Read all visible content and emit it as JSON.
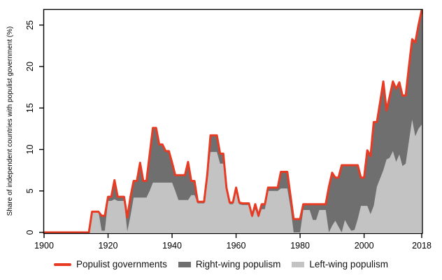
{
  "chart_data": {
    "type": "area",
    "title": "",
    "xlabel": "",
    "ylabel": "Share of independent countries with populist government (%)",
    "x_range": [
      1900,
      2018
    ],
    "ylim": [
      0,
      27
    ],
    "yticks": [
      0,
      5,
      10,
      15,
      20,
      25
    ],
    "xticks": [
      1900,
      1920,
      1940,
      1960,
      1980,
      2000,
      2018
    ],
    "grid": false,
    "legend_position": "bottom",
    "years": [
      1900,
      1901,
      1902,
      1903,
      1904,
      1905,
      1906,
      1907,
      1908,
      1909,
      1910,
      1911,
      1912,
      1913,
      1914,
      1915,
      1916,
      1917,
      1918,
      1919,
      1920,
      1921,
      1922,
      1923,
      1924,
      1925,
      1926,
      1927,
      1928,
      1929,
      1930,
      1931,
      1932,
      1933,
      1934,
      1935,
      1936,
      1937,
      1938,
      1939,
      1940,
      1941,
      1942,
      1943,
      1944,
      1945,
      1946,
      1947,
      1948,
      1949,
      1950,
      1951,
      1952,
      1953,
      1954,
      1955,
      1956,
      1957,
      1958,
      1959,
      1960,
      1961,
      1962,
      1963,
      1964,
      1965,
      1966,
      1967,
      1968,
      1969,
      1970,
      1971,
      1972,
      1973,
      1974,
      1975,
      1976,
      1977,
      1978,
      1979,
      1980,
      1981,
      1982,
      1983,
      1984,
      1985,
      1986,
      1987,
      1988,
      1989,
      1990,
      1991,
      1992,
      1993,
      1994,
      1995,
      1996,
      1997,
      1998,
      1999,
      2000,
      2001,
      2002,
      2003,
      2004,
      2005,
      2006,
      2007,
      2008,
      2009,
      2010,
      2011,
      2012,
      2013,
      2014,
      2015,
      2016,
      2017,
      2018
    ],
    "series": [
      {
        "name": "Populist governments",
        "style": "line",
        "color": "#e73b24",
        "values": [
          0,
          0,
          0,
          0,
          0,
          0,
          0,
          0,
          0,
          0,
          0,
          0,
          0,
          0,
          0,
          2.5,
          2.5,
          2.5,
          2.0,
          2.0,
          4.3,
          4.3,
          6.3,
          4.3,
          4.3,
          4.3,
          1.8,
          4.3,
          6.2,
          6.2,
          8.4,
          6.2,
          6.2,
          9.4,
          12.6,
          12.6,
          10.6,
          10.6,
          9.8,
          9.8,
          8.4,
          6.9,
          6.9,
          6.9,
          6.9,
          8.5,
          6.2,
          6.2,
          3.7,
          3.7,
          3.7,
          7.0,
          11.7,
          11.7,
          11.7,
          9.5,
          9.5,
          5.4,
          3.6,
          3.6,
          5.4,
          3.6,
          3.5,
          3.5,
          3.5,
          2.0,
          3.4,
          2.0,
          3.4,
          3.4,
          5.4,
          5.4,
          5.4,
          5.4,
          7.3,
          7.3,
          7.3,
          4.4,
          1.6,
          1.6,
          1.6,
          3.4,
          3.4,
          3.4,
          3.4,
          3.4,
          3.4,
          3.4,
          3.4,
          5.5,
          7.2,
          6.6,
          6.6,
          8.1,
          8.1,
          8.1,
          8.1,
          8.1,
          8.1,
          6.6,
          6.6,
          9.9,
          9.2,
          13.3,
          13.3,
          15.7,
          18.2,
          14.7,
          16.4,
          18.2,
          17.3,
          18.1,
          16.5,
          16.5,
          20.0,
          23.3,
          22.9,
          25.0,
          26.8
        ]
      },
      {
        "name": "Right-wing populism",
        "style": "area-stacked-top",
        "color": "#6f6f6f",
        "values": [
          0,
          0,
          0,
          0,
          0,
          0,
          0,
          0,
          0,
          0,
          0,
          0,
          0,
          0,
          0,
          0,
          0,
          0,
          1.8,
          1.8,
          0.5,
          0.5,
          2.3,
          0.5,
          0.5,
          0.5,
          1.7,
          2.3,
          2.0,
          2.0,
          4.2,
          2.0,
          2.0,
          4.4,
          6.6,
          6.6,
          4.6,
          4.6,
          3.8,
          3.8,
          2.4,
          1.9,
          3.0,
          3.0,
          3.0,
          4.6,
          1.7,
          1.7,
          0.2,
          0.2,
          0.2,
          0.5,
          2.0,
          2.0,
          2.0,
          1.2,
          1.2,
          0.2,
          0.2,
          0.2,
          0.2,
          0.2,
          0.2,
          0.2,
          0.2,
          0.2,
          0.6,
          0.2,
          0.6,
          0.6,
          0.4,
          0.4,
          0.4,
          0.4,
          2.0,
          2.0,
          2.0,
          1.4,
          1.6,
          1.6,
          1.6,
          0.7,
          0.7,
          0.7,
          1.9,
          1.9,
          0.7,
          0.7,
          0.7,
          5.5,
          6.4,
          5.2,
          5.9,
          8.1,
          6.6,
          7.3,
          7.9,
          7.8,
          6.5,
          3.4,
          3.4,
          6.7,
          7.0,
          10.1,
          7.8,
          9.2,
          10.7,
          5.9,
          7.4,
          8.4,
          8.8,
          8.7,
          8.5,
          8.2,
          9.0,
          9.7,
          11.3,
          12.5,
          13.8
        ]
      },
      {
        "name": "Left-wing populism",
        "style": "area-stacked-bottom",
        "color": "#c3c3c3",
        "values": [
          0,
          0,
          0,
          0,
          0,
          0,
          0,
          0,
          0,
          0,
          0,
          0,
          0,
          0,
          0,
          2.5,
          2.5,
          2.5,
          0.2,
          0.2,
          3.8,
          3.8,
          4.0,
          3.8,
          3.8,
          3.8,
          0.1,
          2.0,
          4.2,
          4.2,
          4.2,
          4.2,
          4.2,
          5.0,
          6.0,
          6.0,
          6.0,
          6.0,
          6.0,
          6.0,
          6.0,
          5.0,
          3.9,
          3.9,
          3.9,
          3.9,
          4.5,
          4.5,
          3.5,
          3.5,
          3.5,
          6.5,
          9.7,
          9.7,
          9.7,
          8.3,
          8.3,
          5.2,
          3.4,
          3.4,
          5.2,
          3.4,
          3.3,
          3.3,
          3.3,
          1.8,
          2.8,
          1.8,
          2.8,
          2.8,
          5.0,
          5.0,
          5.0,
          5.0,
          5.3,
          5.3,
          5.3,
          3.0,
          0,
          0,
          0,
          2.7,
          2.7,
          2.7,
          1.5,
          1.5,
          2.7,
          2.7,
          2.7,
          0,
          0.8,
          1.4,
          0.7,
          0,
          1.5,
          0.8,
          0.2,
          0.3,
          1.6,
          3.2,
          3.2,
          3.2,
          2.2,
          3.2,
          5.5,
          6.5,
          7.5,
          8.8,
          9.0,
          9.8,
          8.5,
          9.4,
          8.0,
          8.3,
          11.0,
          13.6,
          11.6,
          12.5,
          13.0
        ]
      }
    ],
    "colors": {
      "line": "#e73b24",
      "right_wing": "#6f6f6f",
      "left_wing": "#c3c3c3",
      "axis": "#000000",
      "background": "#ffffff"
    }
  },
  "legend": {
    "items": [
      {
        "label": "Populist governments",
        "color": "#e73b24",
        "marker": "line"
      },
      {
        "label": "Right-wing populism",
        "color": "#6f6f6f",
        "marker": "block"
      },
      {
        "label": "Left-wing populism",
        "color": "#c3c3c3",
        "marker": "block"
      }
    ]
  }
}
